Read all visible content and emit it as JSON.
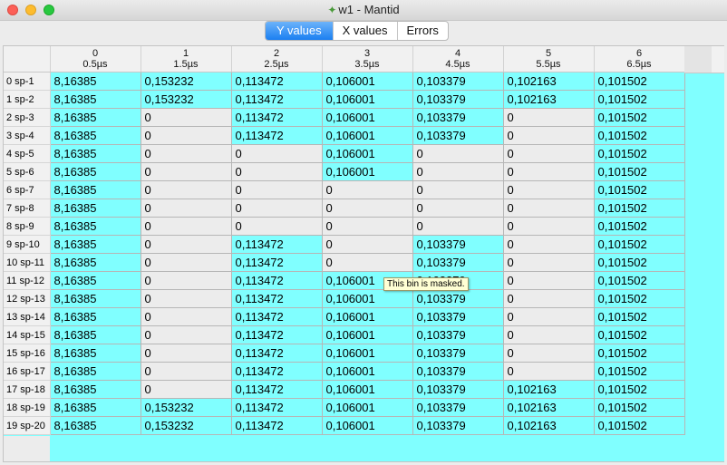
{
  "window": {
    "title": "w1 - Mantid",
    "logo_icon": "mantid-logo-icon"
  },
  "tabs": [
    {
      "label": "Y values",
      "active": true
    },
    {
      "label": "X values",
      "active": false
    },
    {
      "label": "Errors",
      "active": false
    }
  ],
  "columns": [
    {
      "index": "0",
      "x": "0.5µs"
    },
    {
      "index": "1",
      "x": "1.5µs"
    },
    {
      "index": "2",
      "x": "2.5µs"
    },
    {
      "index": "3",
      "x": "3.5µs"
    },
    {
      "index": "4",
      "x": "4.5µs"
    },
    {
      "index": "5",
      "x": "5.5µs"
    },
    {
      "index": "6",
      "x": "6.5µs"
    }
  ],
  "rows": [
    {
      "label": "0 sp-1",
      "values": [
        "8,16385",
        "0,153232",
        "0,113472",
        "0,106001",
        "0,103379",
        "0,102163",
        "0,101502"
      ],
      "masked": [
        false,
        false,
        false,
        false,
        false,
        false,
        false
      ]
    },
    {
      "label": "1 sp-2",
      "values": [
        "8,16385",
        "0,153232",
        "0,113472",
        "0,106001",
        "0,103379",
        "0,102163",
        "0,101502"
      ],
      "masked": [
        false,
        false,
        false,
        false,
        false,
        false,
        false
      ]
    },
    {
      "label": "2 sp-3",
      "values": [
        "8,16385",
        "0",
        "0,113472",
        "0,106001",
        "0,103379",
        "0",
        "0,101502"
      ],
      "masked": [
        false,
        true,
        false,
        false,
        false,
        true,
        false
      ]
    },
    {
      "label": "3 sp-4",
      "values": [
        "8,16385",
        "0",
        "0,113472",
        "0,106001",
        "0,103379",
        "0",
        "0,101502"
      ],
      "masked": [
        false,
        true,
        false,
        false,
        false,
        true,
        false
      ]
    },
    {
      "label": "4 sp-5",
      "values": [
        "8,16385",
        "0",
        "0",
        "0,106001",
        "0",
        "0",
        "0,101502"
      ],
      "masked": [
        false,
        true,
        true,
        false,
        true,
        true,
        false
      ]
    },
    {
      "label": "5 sp-6",
      "values": [
        "8,16385",
        "0",
        "0",
        "0,106001",
        "0",
        "0",
        "0,101502"
      ],
      "masked": [
        false,
        true,
        true,
        false,
        true,
        true,
        false
      ]
    },
    {
      "label": "6 sp-7",
      "values": [
        "8,16385",
        "0",
        "0",
        "0",
        "0",
        "0",
        "0,101502"
      ],
      "masked": [
        false,
        true,
        true,
        true,
        true,
        true,
        false
      ]
    },
    {
      "label": "7 sp-8",
      "values": [
        "8,16385",
        "0",
        "0",
        "0",
        "0",
        "0",
        "0,101502"
      ],
      "masked": [
        false,
        true,
        true,
        true,
        true,
        true,
        false
      ]
    },
    {
      "label": "8 sp-9",
      "values": [
        "8,16385",
        "0",
        "0",
        "0",
        "0",
        "0",
        "0,101502"
      ],
      "masked": [
        false,
        true,
        true,
        true,
        true,
        true,
        false
      ]
    },
    {
      "label": "9 sp-10",
      "values": [
        "8,16385",
        "0",
        "0,113472",
        "0",
        "0,103379",
        "0",
        "0,101502"
      ],
      "masked": [
        false,
        true,
        false,
        true,
        false,
        true,
        false
      ]
    },
    {
      "label": "10 sp-11",
      "values": [
        "8,16385",
        "0",
        "0,113472",
        "0",
        "0,103379",
        "0",
        "0,101502"
      ],
      "masked": [
        false,
        true,
        false,
        true,
        false,
        true,
        false
      ]
    },
    {
      "label": "11 sp-12",
      "values": [
        "8,16385",
        "0",
        "0,113472",
        "0,106001",
        "0,103379",
        "0",
        "0,101502"
      ],
      "masked": [
        false,
        true,
        false,
        false,
        false,
        true,
        false
      ]
    },
    {
      "label": "12 sp-13",
      "values": [
        "8,16385",
        "0",
        "0,113472",
        "0,106001",
        "0,103379",
        "0",
        "0,101502"
      ],
      "masked": [
        false,
        true,
        false,
        false,
        false,
        true,
        false
      ]
    },
    {
      "label": "13 sp-14",
      "values": [
        "8,16385",
        "0",
        "0,113472",
        "0,106001",
        "0,103379",
        "0",
        "0,101502"
      ],
      "masked": [
        false,
        true,
        false,
        false,
        false,
        true,
        false
      ]
    },
    {
      "label": "14 sp-15",
      "values": [
        "8,16385",
        "0",
        "0,113472",
        "0,106001",
        "0,103379",
        "0",
        "0,101502"
      ],
      "masked": [
        false,
        true,
        false,
        false,
        false,
        true,
        false
      ]
    },
    {
      "label": "15 sp-16",
      "values": [
        "8,16385",
        "0",
        "0,113472",
        "0,106001",
        "0,103379",
        "0",
        "0,101502"
      ],
      "masked": [
        false,
        true,
        false,
        false,
        false,
        true,
        false
      ]
    },
    {
      "label": "16 sp-17",
      "values": [
        "8,16385",
        "0",
        "0,113472",
        "0,106001",
        "0,103379",
        "0",
        "0,101502"
      ],
      "masked": [
        false,
        true,
        false,
        false,
        false,
        true,
        false
      ]
    },
    {
      "label": "17 sp-18",
      "values": [
        "8,16385",
        "0",
        "0,113472",
        "0,106001",
        "0,103379",
        "0,102163",
        "0,101502"
      ],
      "masked": [
        false,
        true,
        false,
        false,
        false,
        false,
        false
      ]
    },
    {
      "label": "18 sp-19",
      "values": [
        "8,16385",
        "0,153232",
        "0,113472",
        "0,106001",
        "0,103379",
        "0,102163",
        "0,101502"
      ],
      "masked": [
        false,
        false,
        false,
        false,
        false,
        false,
        false
      ]
    },
    {
      "label": "19 sp-20",
      "values": [
        "8,16385",
        "0,153232",
        "0,113472",
        "0,106001",
        "0,103379",
        "0,102163",
        "0,101502"
      ],
      "masked": [
        false,
        false,
        false,
        false,
        false,
        false,
        false
      ]
    }
  ],
  "tooltip": "This bin is masked.",
  "colors": {
    "unmasked": "#80ffff",
    "masked": "#ececec",
    "active_tab": "#1b7ff1"
  }
}
